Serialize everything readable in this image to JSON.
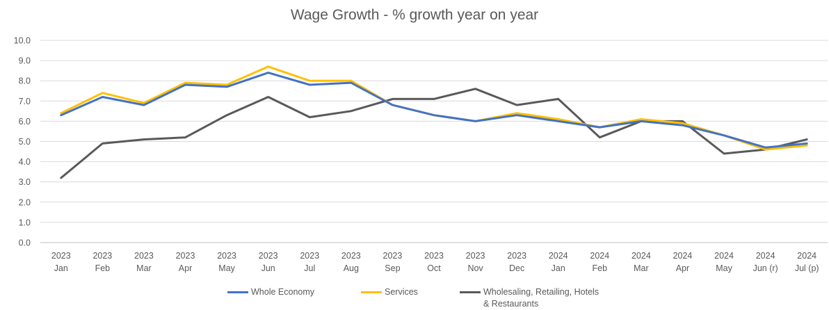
{
  "chart_data": {
    "type": "line",
    "title": "Wage Growth -  % growth year on year",
    "xlabel": "",
    "ylabel": "",
    "ylim": [
      0,
      10
    ],
    "yticks": [
      "0.0",
      "1.0",
      "2.0",
      "3.0",
      "4.0",
      "5.0",
      "6.0",
      "7.0",
      "8.0",
      "9.0",
      "10.0"
    ],
    "grid": true,
    "legend_position": "bottom",
    "categories": [
      [
        "2023",
        "Jan"
      ],
      [
        "2023",
        "Feb"
      ],
      [
        "2023",
        "Mar"
      ],
      [
        "2023",
        "Apr"
      ],
      [
        "2023",
        "May"
      ],
      [
        "2023",
        "Jun"
      ],
      [
        "2023",
        "Jul"
      ],
      [
        "2023",
        "Aug"
      ],
      [
        "2023",
        "Sep"
      ],
      [
        "2023",
        "Oct"
      ],
      [
        "2023",
        "Nov"
      ],
      [
        "2023",
        "Dec"
      ],
      [
        "2024",
        "Jan"
      ],
      [
        "2024",
        "Feb"
      ],
      [
        "2024",
        "Mar"
      ],
      [
        "2024",
        "Apr"
      ],
      [
        "2024",
        "May"
      ],
      [
        "2024",
        "Jun (r)"
      ],
      [
        "2024",
        "Jul (p)"
      ]
    ],
    "series": [
      {
        "name": "Whole Economy",
        "color": "#4472c4",
        "values": [
          6.3,
          7.2,
          6.8,
          7.8,
          7.7,
          8.4,
          7.8,
          7.9,
          6.8,
          6.3,
          6.0,
          6.3,
          6.0,
          5.7,
          6.0,
          5.8,
          5.3,
          4.7,
          4.9
        ]
      },
      {
        "name": "Services",
        "color": "#ffc000",
        "values": [
          6.4,
          7.4,
          6.9,
          7.9,
          7.8,
          8.7,
          8.0,
          8.0,
          6.8,
          6.3,
          6.0,
          6.4,
          6.1,
          5.7,
          6.1,
          5.9,
          5.3,
          4.6,
          4.8
        ]
      },
      {
        "name": "Wholesaling, Retailing, Hotels\n& Restaurants",
        "name_lines": [
          "Wholesaling, Retailing, Hotels",
          "& Restaurants"
        ],
        "color": "#595959",
        "values": [
          3.2,
          4.9,
          5.1,
          5.2,
          6.3,
          7.2,
          6.2,
          6.5,
          7.1,
          7.1,
          7.6,
          6.8,
          7.1,
          5.2,
          6.0,
          6.0,
          4.4,
          4.6,
          5.1
        ]
      }
    ]
  }
}
